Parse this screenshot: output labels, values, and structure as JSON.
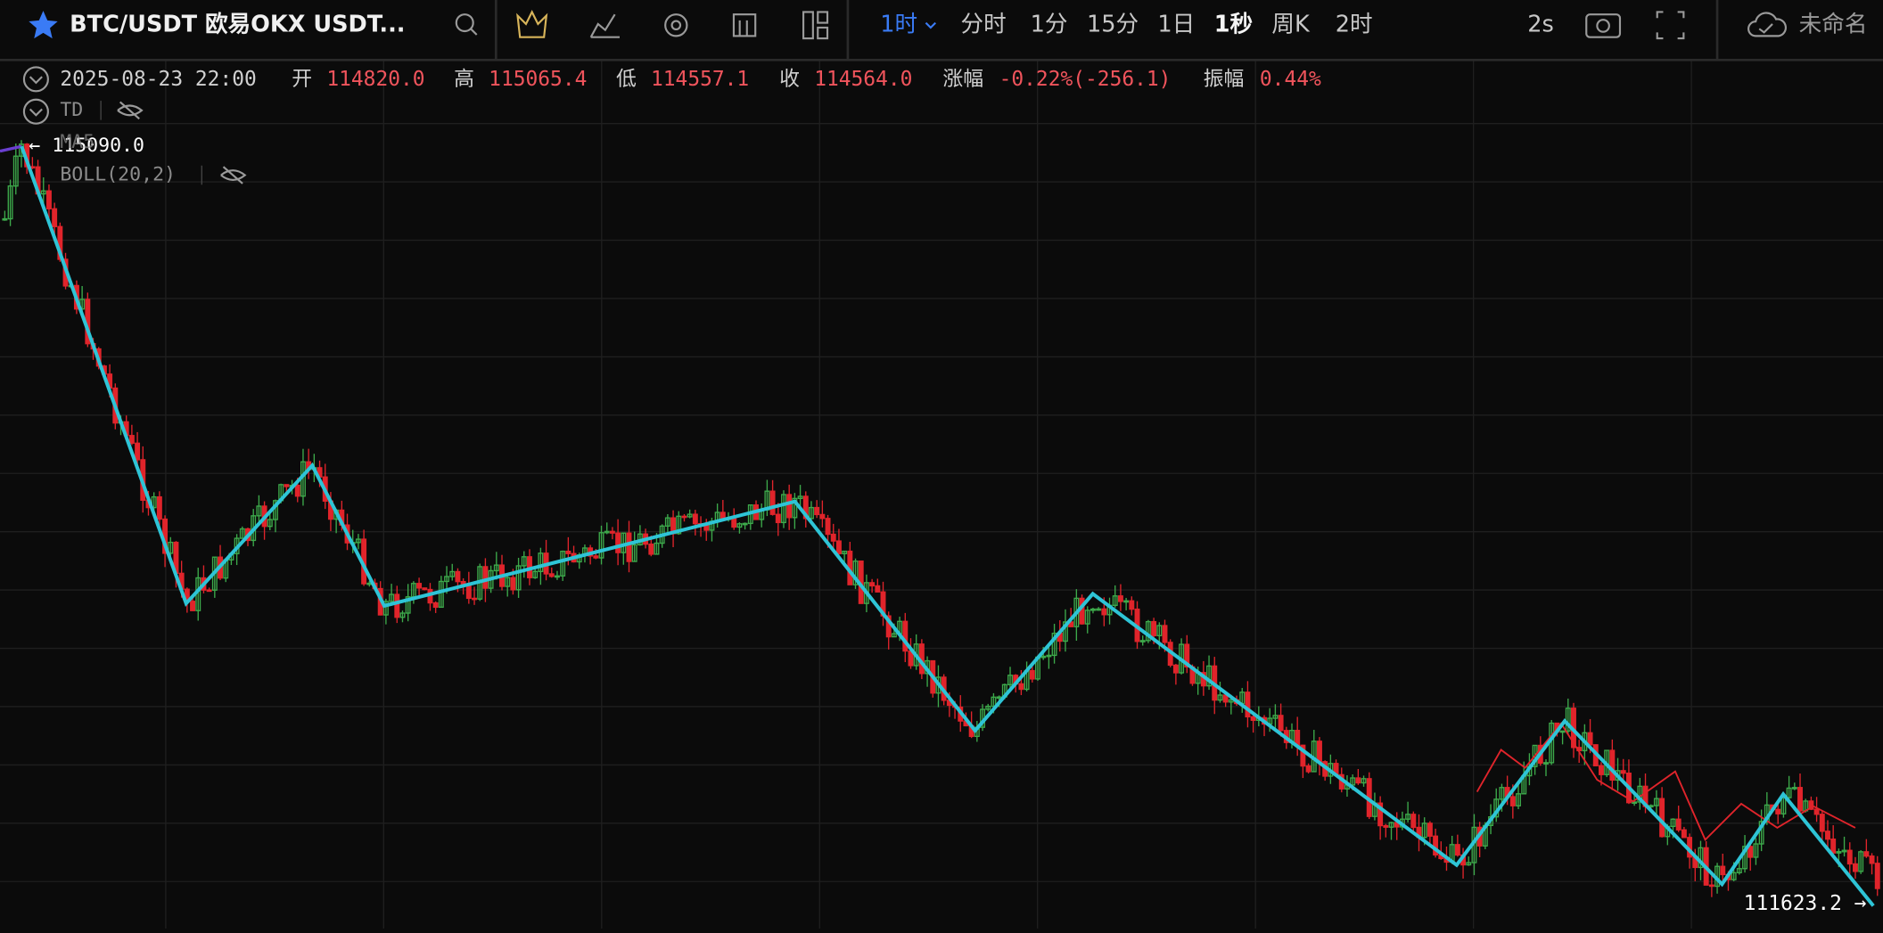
{
  "toolbar": {
    "symbol": "BTC/USDT 欧易OKX USDT...",
    "intervals": [
      "1时",
      "分时",
      "1分",
      "15分",
      "1日",
      "1秒",
      "周K",
      "2时"
    ],
    "refresh": "2s",
    "layout_name": "未命名"
  },
  "ohlc": {
    "datetime": "2025-08-23 22:00",
    "open_label": "开",
    "open": "114820.0",
    "high_label": "高",
    "high": "115065.4",
    "low_label": "低",
    "low": "114557.1",
    "close_label": "收",
    "close": "114564.0",
    "change_label": "涨幅",
    "change": "-0.22%(-256.1)",
    "amplitude_label": "振幅",
    "amplitude": "0.44%"
  },
  "indicators": [
    "TD",
    "MA5",
    "BOLL(20,2)"
  ],
  "price_labels": {
    "high": "115090.0",
    "low": "111623.2"
  }
}
